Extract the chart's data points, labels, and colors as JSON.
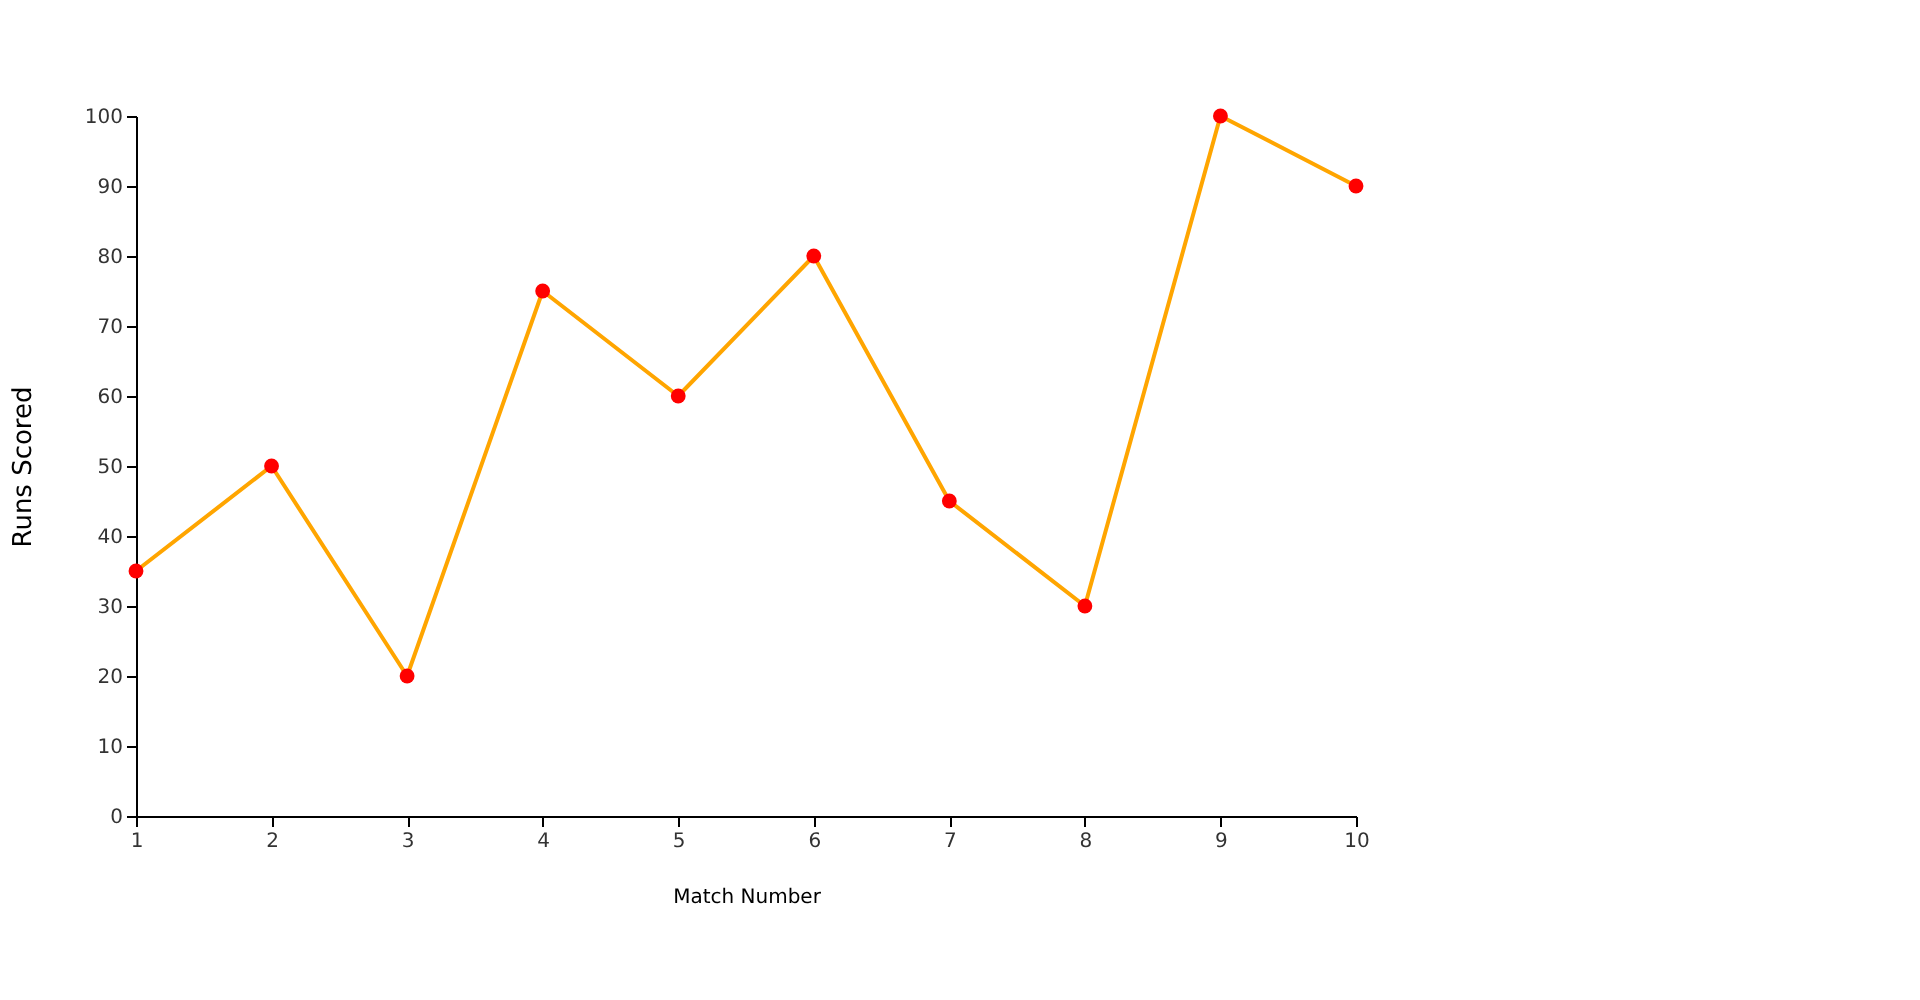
{
  "chart_data": {
    "type": "line",
    "xlabel": "Match Number",
    "ylabel": "Runs Scored",
    "x": [
      1,
      2,
      3,
      4,
      5,
      6,
      7,
      8,
      9,
      10
    ],
    "series": [
      {
        "color": "#ffa500",
        "colors": [
          "#ff0000",
          "#ff0000",
          "#ff0000",
          "#ff0000",
          "#ff0000",
          "#ff0000",
          "#ff0000",
          "#ff0000",
          "#ff0000",
          "#ff0000"
        ],
        "values": [
          35,
          50,
          20,
          75,
          60,
          80,
          45,
          30,
          100,
          90
        ]
      }
    ],
    "xlim": [
      1,
      10
    ],
    "xticks": [
      1,
      2,
      3,
      4,
      5,
      6,
      7,
      8,
      9,
      10
    ],
    "ylim": [
      0,
      100
    ],
    "yticks": [
      0,
      10,
      20,
      30,
      40,
      50,
      60,
      70,
      80,
      90,
      100
    ],
    "grid": false,
    "marker": "circle"
  }
}
